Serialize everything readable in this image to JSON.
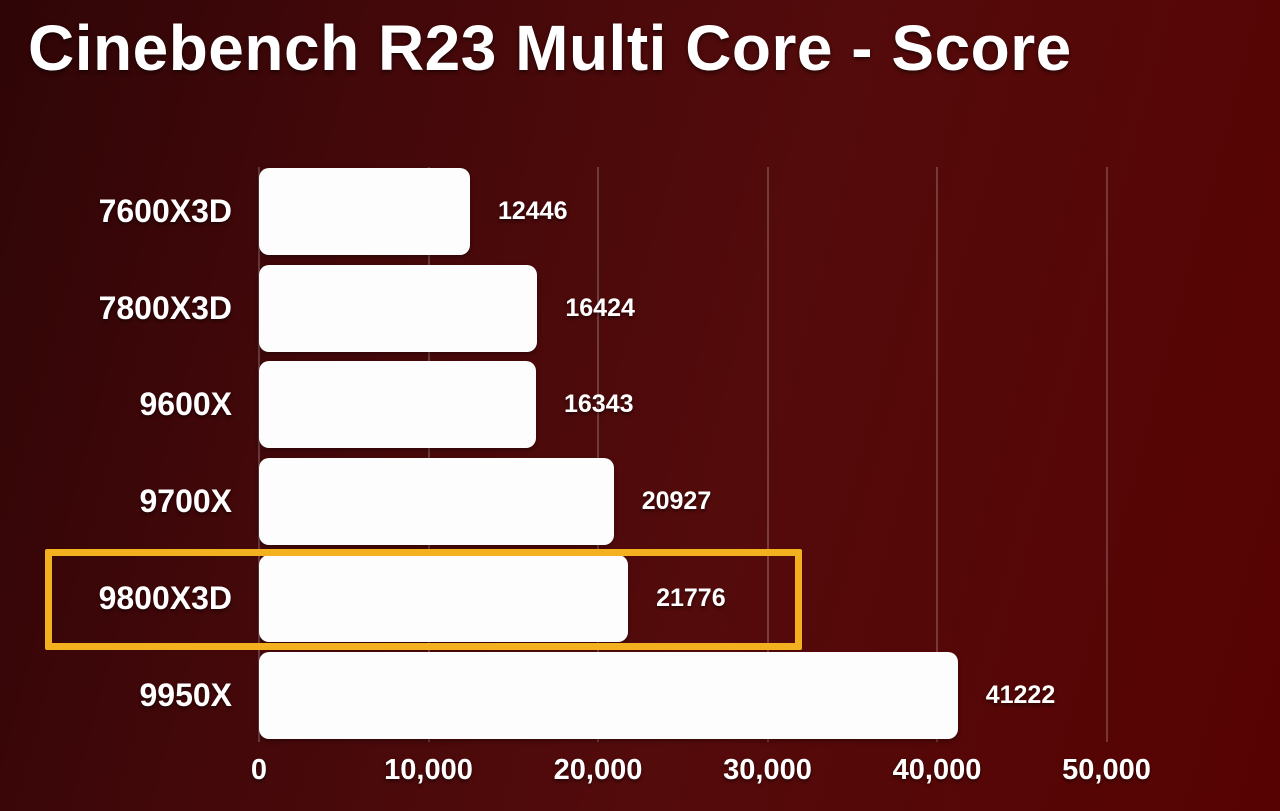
{
  "chart_data": {
    "type": "bar",
    "orientation": "horizontal",
    "title": "Cinebench R23 Multi Core - Score",
    "categories": [
      "7600X3D",
      "7800X3D",
      "9600X",
      "9700X",
      "9800X3D",
      "9950X"
    ],
    "values": [
      12446,
      16424,
      16343,
      20927,
      21776,
      41222
    ],
    "value_labels": [
      "12446",
      "16424",
      "16343",
      "20927",
      "21776",
      "41222"
    ],
    "highlighted_category": "9800X3D",
    "highlighted_index": 4,
    "xlabel": "",
    "ylabel": "",
    "xlim": [
      0,
      50000
    ],
    "x_ticks": [
      0,
      10000,
      20000,
      30000,
      40000,
      50000
    ],
    "x_tick_labels": [
      "0",
      "10,000",
      "20,000",
      "30,000",
      "40,000",
      "50,000"
    ],
    "grid": "vertical-faint",
    "legend": "none",
    "colors": {
      "bar_fill": "#fdfdfd",
      "highlight_border": "#f3b01f",
      "text": "#ffffff",
      "gridline": "rgba(255,255,255,0.20)",
      "background_dark": "#2f0506",
      "background_light": "#570202"
    }
  }
}
